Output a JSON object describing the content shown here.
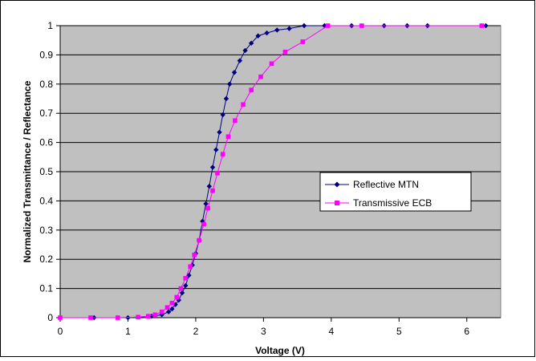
{
  "chart_data": {
    "type": "line",
    "title": "",
    "xlabel": "Voltage (V)",
    "ylabel": "Normalized Transmittance / Reflectance",
    "xlim": [
      0,
      6.5
    ],
    "ylim": [
      0,
      1
    ],
    "xticks": [
      0,
      1,
      2,
      3,
      4,
      5,
      6
    ],
    "yticks": [
      0,
      0.1,
      0.2,
      0.3,
      0.4,
      0.5,
      0.6,
      0.7,
      0.8,
      0.9,
      1
    ],
    "grid": "horizontal",
    "plot_background": "#C0C0C0",
    "legend_position": "center-right",
    "series": [
      {
        "name": "Reflective MTN",
        "color": "#000080",
        "marker": "diamond",
        "x": [
          0,
          0.5,
          1.0,
          1.35,
          1.5,
          1.6,
          1.65,
          1.7,
          1.75,
          1.8,
          1.85,
          1.9,
          1.95,
          2.0,
          2.05,
          2.1,
          2.15,
          2.2,
          2.25,
          2.3,
          2.35,
          2.4,
          2.45,
          2.5,
          2.57,
          2.65,
          2.73,
          2.82,
          2.92,
          3.05,
          3.2,
          3.38,
          3.6,
          3.9,
          4.3,
          4.78,
          5.12,
          5.42,
          6.28
        ],
        "values": [
          0,
          0,
          0,
          0.005,
          0.01,
          0.02,
          0.03,
          0.045,
          0.06,
          0.085,
          0.11,
          0.145,
          0.18,
          0.22,
          0.265,
          0.33,
          0.39,
          0.45,
          0.515,
          0.575,
          0.635,
          0.695,
          0.75,
          0.8,
          0.84,
          0.88,
          0.915,
          0.94,
          0.965,
          0.975,
          0.985,
          0.99,
          1,
          1,
          1,
          1,
          1,
          1,
          1
        ]
      },
      {
        "name": "Transmissive ECB",
        "color": "#FF00FF",
        "marker": "square",
        "x": [
          0,
          0.45,
          0.85,
          1.15,
          1.3,
          1.4,
          1.5,
          1.58,
          1.65,
          1.72,
          1.78,
          1.85,
          1.92,
          1.98,
          2.05,
          2.12,
          2.18,
          2.25,
          2.32,
          2.4,
          2.48,
          2.58,
          2.7,
          2.82,
          2.96,
          3.12,
          3.32,
          3.58,
          3.95,
          4.45,
          6.22
        ],
        "values": [
          0,
          0,
          0,
          0.002,
          0.005,
          0.01,
          0.02,
          0.035,
          0.05,
          0.07,
          0.1,
          0.135,
          0.175,
          0.215,
          0.265,
          0.32,
          0.375,
          0.435,
          0.495,
          0.56,
          0.62,
          0.675,
          0.73,
          0.78,
          0.825,
          0.87,
          0.91,
          0.945,
          1.0,
          1.0,
          1.0
        ]
      }
    ]
  }
}
